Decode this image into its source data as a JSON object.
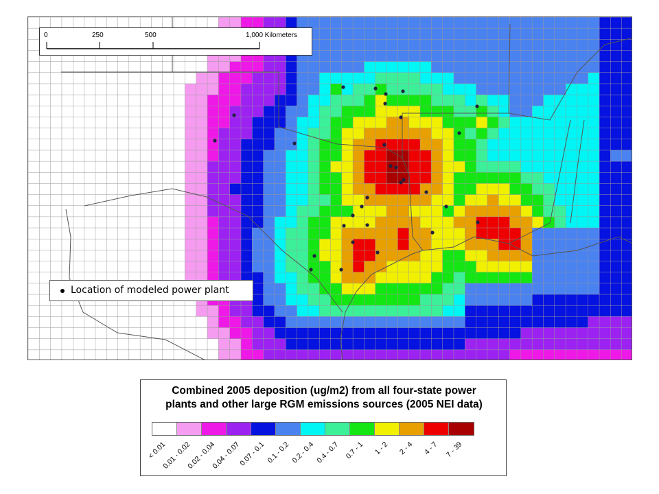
{
  "map": {
    "scale_bar": {
      "ticks": [
        "0",
        "250",
        "500",
        "1,000 Kilometers"
      ]
    },
    "plant_legend_label": "Location of modeled power plant",
    "legend": {
      "title": "Combined 2005 deposition (ug/m2) from all four-state power plants and other large RGM emissions sources (2005 NEI data)",
      "title_lines": [
        "Combined 2005 deposition (ug/m2) from all four-state power",
        "plants and other large RGM emissions sources (2005 NEI data)"
      ],
      "bins": [
        {
          "label": "< 0.01",
          "color": "#ffffff"
        },
        {
          "label": "0.01 - 0.02",
          "color": "#f59cf0"
        },
        {
          "label": "0.02 - 0.04",
          "color": "#ee19e6"
        },
        {
          "label": "0.04 - 0.07",
          "color": "#9c22f2"
        },
        {
          "label": "0.07 - 0.1",
          "color": "#0612e0"
        },
        {
          "label": "0.1 - 0.2",
          "color": "#4a82f0"
        },
        {
          "label": "0.2 - 0.4",
          "color": "#00f5f5"
        },
        {
          "label": "0.4 - 0.7",
          "color": "#3cf09a"
        },
        {
          "label": "0.7 - 1",
          "color": "#14e614"
        },
        {
          "label": "1 - 2",
          "color": "#f0f000"
        },
        {
          "label": "2 - 4",
          "color": "#e8a000"
        },
        {
          "label": "4 - 7",
          "color": "#ee0000"
        },
        {
          "label": "7 - 39",
          "color": "#a80000"
        }
      ]
    },
    "grid_colors": [
      "#ffffff",
      "#f59cf0",
      "#ee19e6",
      "#9c22f2",
      "#0612e0",
      "#4a82f0",
      "#00f5f5",
      "#3cf09a",
      "#14e614",
      "#f0f000",
      "#e8a000",
      "#ee0000",
      "#a80000"
    ],
    "gridline_color": "#9a9a9a",
    "boundary_color": "#555555"
  }
}
